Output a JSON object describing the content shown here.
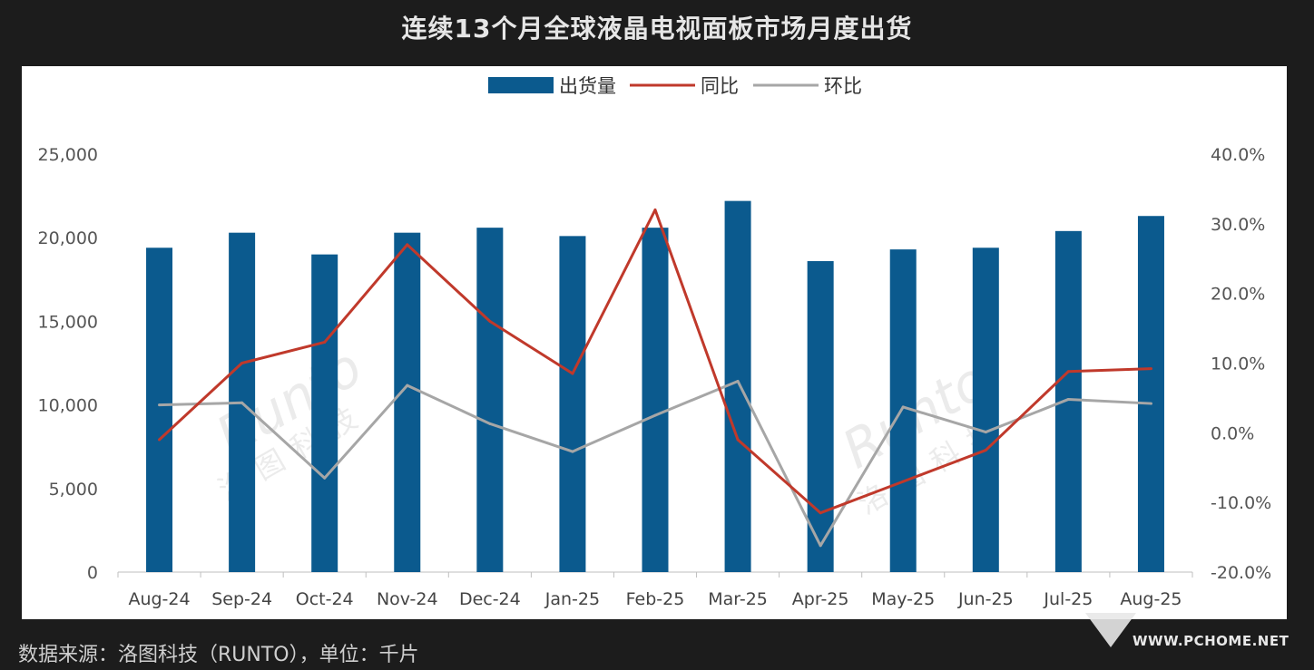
{
  "title": "连续13个月全球液晶电视面板市场月度出货",
  "footer": "数据来源：洛图科技（RUNTO），单位：千片",
  "watermark": {
    "brand": "Runto",
    "cn": "洛图科技"
  },
  "site_brand": "WWW.PCHOME.NET",
  "colors": {
    "bar": "#0b5a8e",
    "yoy": "#c0392b",
    "mom": "#a6a6a6"
  },
  "chart_data": {
    "type": "bar",
    "categories": [
      "Aug-24",
      "Sep-24",
      "Oct-24",
      "Nov-24",
      "Dec-24",
      "Jan-25",
      "Feb-25",
      "Mar-25",
      "Apr-25",
      "May-25",
      "Jun-25",
      "Jul-25",
      "Aug-25"
    ],
    "series": [
      {
        "name": "出货量",
        "type": "bar",
        "axis": "left",
        "values": [
          19400,
          20300,
          19000,
          20300,
          20600,
          20100,
          20600,
          22200,
          18600,
          19300,
          19400,
          20400,
          21300
        ]
      },
      {
        "name": "同比",
        "type": "line",
        "axis": "right",
        "values": [
          -1.0,
          10.0,
          13.0,
          27.0,
          16.0,
          8.5,
          32.0,
          -1.0,
          -11.5,
          -7.0,
          -2.5,
          8.8,
          9.2
        ]
      },
      {
        "name": "环比",
        "type": "line",
        "axis": "right",
        "values": [
          4.0,
          4.3,
          -6.5,
          6.8,
          1.3,
          -2.7,
          2.5,
          7.4,
          -16.2,
          3.7,
          0.1,
          4.8,
          4.2
        ]
      }
    ],
    "left_axis": {
      "ylim": [
        0,
        25000
      ],
      "ticks": [
        "0",
        "5,000",
        "10,000",
        "15,000",
        "20,000",
        "25,000"
      ]
    },
    "right_axis": {
      "ylim": [
        -20,
        40
      ],
      "ticks": [
        "-20.0%",
        "-10.0%",
        "0.0%",
        "10.0%",
        "20.0%",
        "30.0%",
        "40.0%"
      ]
    },
    "legend": {
      "position": "top",
      "items": [
        "出货量",
        "同比",
        "环比"
      ]
    },
    "grid": false
  }
}
